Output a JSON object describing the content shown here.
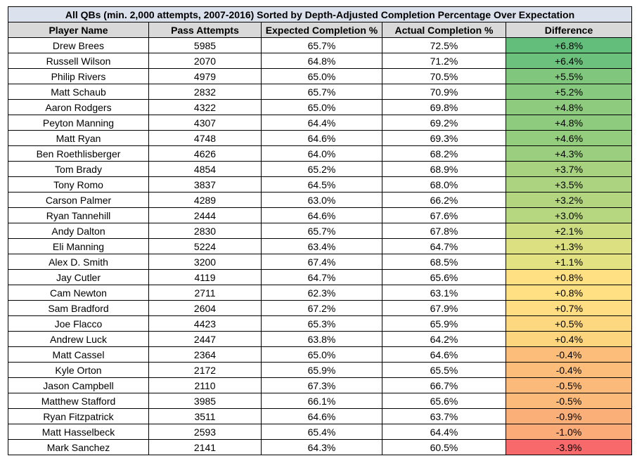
{
  "chart_data": {
    "type": "table",
    "title": "All QBs (min. 2,000 attempts, 2007-2016) Sorted by Depth-Adjusted Completion Percentage Over Expectation",
    "columns": [
      "Player Name",
      "Pass Attempts",
      "Expected Completion %",
      "Actual Completion %",
      "Difference"
    ],
    "rows": [
      [
        "Drew Brees",
        "5985",
        "65.7%",
        "72.5%",
        "+6.8%"
      ],
      [
        "Russell Wilson",
        "2070",
        "64.8%",
        "71.2%",
        "+6.4%"
      ],
      [
        "Philip Rivers",
        "4979",
        "65.0%",
        "70.5%",
        "+5.5%"
      ],
      [
        "Matt Schaub",
        "2832",
        "65.7%",
        "70.9%",
        "+5.2%"
      ],
      [
        "Aaron Rodgers",
        "4322",
        "65.0%",
        "69.8%",
        "+4.8%"
      ],
      [
        "Peyton Manning",
        "4307",
        "64.4%",
        "69.2%",
        "+4.8%"
      ],
      [
        "Matt Ryan",
        "4748",
        "64.6%",
        "69.3%",
        "+4.6%"
      ],
      [
        "Ben Roethlisberger",
        "4626",
        "64.0%",
        "68.2%",
        "+4.3%"
      ],
      [
        "Tom Brady",
        "4854",
        "65.2%",
        "68.9%",
        "+3.7%"
      ],
      [
        "Tony Romo",
        "3837",
        "64.5%",
        "68.0%",
        "+3.5%"
      ],
      [
        "Carson Palmer",
        "4289",
        "63.0%",
        "66.2%",
        "+3.2%"
      ],
      [
        "Ryan Tannehill",
        "2444",
        "64.6%",
        "67.6%",
        "+3.0%"
      ],
      [
        "Andy Dalton",
        "2830",
        "65.7%",
        "67.8%",
        "+2.1%"
      ],
      [
        "Eli Manning",
        "5224",
        "63.4%",
        "64.7%",
        "+1.3%"
      ],
      [
        "Alex D. Smith",
        "3200",
        "67.4%",
        "68.5%",
        "+1.1%"
      ],
      [
        "Jay Cutler",
        "4119",
        "64.7%",
        "65.6%",
        "+0.8%"
      ],
      [
        "Cam Newton",
        "2711",
        "62.3%",
        "63.1%",
        "+0.8%"
      ],
      [
        "Sam Bradford",
        "2604",
        "67.2%",
        "67.9%",
        "+0.7%"
      ],
      [
        "Joe Flacco",
        "4423",
        "65.3%",
        "65.9%",
        "+0.5%"
      ],
      [
        "Andrew Luck",
        "2447",
        "63.8%",
        "64.2%",
        "+0.4%"
      ],
      [
        "Matt Cassel",
        "2364",
        "65.0%",
        "64.6%",
        "-0.4%"
      ],
      [
        "Kyle Orton",
        "2172",
        "65.9%",
        "65.5%",
        "-0.4%"
      ],
      [
        "Jason Campbell",
        "2110",
        "67.3%",
        "66.7%",
        "-0.5%"
      ],
      [
        "Matthew Stafford",
        "3985",
        "66.1%",
        "65.6%",
        "-0.5%"
      ],
      [
        "Ryan Fitzpatrick",
        "3511",
        "64.6%",
        "63.7%",
        "-0.9%"
      ],
      [
        "Matt Hasselbeck",
        "2593",
        "65.4%",
        "64.4%",
        "-1.0%"
      ],
      [
        "Mark Sanchez",
        "2141",
        "64.3%",
        "60.5%",
        "-3.9%"
      ]
    ],
    "difference_colors": [
      "#63be7b",
      "#6cc17c",
      "#80c77d",
      "#87c97e",
      "#8fcb7e",
      "#8fcb7e",
      "#94cd7e",
      "#9bcf7f",
      "#a8d27f",
      "#acd37f",
      "#b3d580",
      "#b7d680",
      "#cbdc81",
      "#dde081",
      "#e2e283",
      "#ffe083",
      "#ffe083",
      "#ffdd82",
      "#fed880",
      "#fed57f",
      "#fcbd7b",
      "#fcbd7b",
      "#fcba7a",
      "#fcba7a",
      "#fbaf78",
      "#fbab77",
      "#f8696b"
    ],
    "header_color": "#d9d9d9",
    "title_color": "#dce1ee"
  }
}
